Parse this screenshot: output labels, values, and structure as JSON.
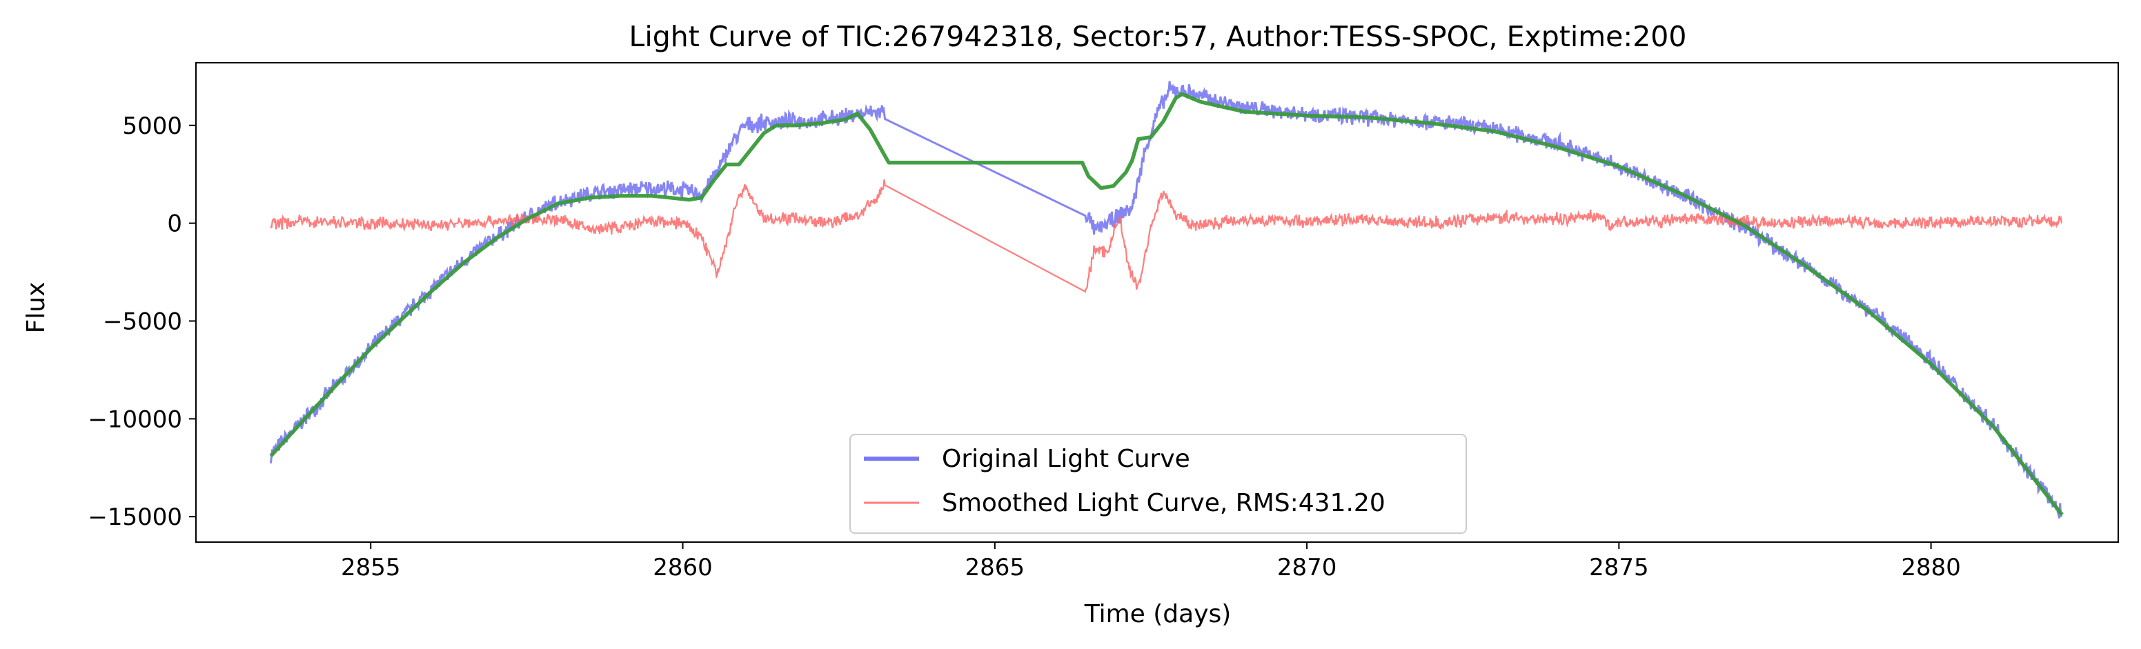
{
  "chart_data": {
    "type": "line",
    "title": "Light Curve of TIC:267942318, Sector:57, Author:TESS-SPOC, Exptime:200",
    "xlabel": "Time (days)",
    "ylabel": "Flux",
    "xlim": [
      2852.2,
      2883.0
    ],
    "ylim": [
      -16300,
      8200
    ],
    "xticks": [
      2855,
      2860,
      2865,
      2870,
      2875,
      2880
    ],
    "yticks": [
      5000,
      0,
      -5000,
      -10000,
      -15000
    ],
    "ytick_labels": [
      "5000",
      "0",
      "−5000",
      "−10000",
      "−15000"
    ],
    "grid": false,
    "legend_position": "lower center",
    "legend": [
      {
        "label": "Original Light Curve",
        "color": "#7777f6"
      },
      {
        "label": "Smoothed Light Curve, RMS:431.20",
        "color": "#ff7b7b"
      }
    ],
    "series": [
      {
        "name": "Original Light Curve",
        "color": "#6666f0",
        "x": [
          2853.4,
          2854.0,
          2854.5,
          2855.0,
          2855.5,
          2856.0,
          2856.5,
          2857.0,
          2857.5,
          2858.0,
          2858.5,
          2859.0,
          2859.5,
          2860.0,
          2860.3,
          2860.5,
          2860.65,
          2860.8,
          2861.0,
          2861.5,
          2862.0,
          2862.5,
          2862.9,
          2863.2,
          2866.5,
          2866.6,
          2866.9,
          2867.2,
          2867.4,
          2867.6,
          2867.8,
          2868.0,
          2868.5,
          2869.0,
          2870.0,
          2871.0,
          2872.0,
          2873.0,
          2874.0,
          2875.0,
          2876.0,
          2877.0,
          2878.0,
          2879.0,
          2880.0,
          2881.0,
          2882.1
        ],
        "y": [
          -11800,
          -9800,
          -8100,
          -6400,
          -4800,
          -3300,
          -1900,
          -700,
          300,
          1100,
          1500,
          1700,
          1800,
          1700,
          1500,
          2400,
          3200,
          4200,
          5000,
          5200,
          5200,
          5400,
          5600,
          5700,
          300,
          -400,
          200,
          800,
          3600,
          5600,
          6800,
          6800,
          6300,
          5900,
          5600,
          5400,
          5200,
          4800,
          4100,
          2900,
          1500,
          -200,
          -2200,
          -4400,
          -7000,
          -10300,
          -14900
        ],
        "band_width": 1100
      },
      {
        "name": "",
        "color": "#3a9a3a",
        "x": [
          2853.4,
          2854.0,
          2854.5,
          2855.0,
          2855.5,
          2856.0,
          2856.5,
          2857.0,
          2857.5,
          2858.0,
          2858.5,
          2859.0,
          2859.5,
          2859.8,
          2860.1,
          2860.3,
          2860.5,
          2860.7,
          2860.9,
          2861.1,
          2861.3,
          2861.5,
          2861.8,
          2862.2,
          2862.6,
          2862.8,
          2863.0,
          2863.3,
          2866.4,
          2866.5,
          2866.7,
          2866.9,
          2867.1,
          2867.2,
          2867.3,
          2867.5,
          2867.7,
          2867.9,
          2868.0,
          2868.3,
          2869.0,
          2870.0,
          2871.0,
          2872.0,
          2873.0,
          2874.0,
          2875.0,
          2876.0,
          2877.0,
          2878.0,
          2879.0,
          2880.0,
          2881.0,
          2882.1
        ],
        "y": [
          -11900,
          -9800,
          -8100,
          -6400,
          -4900,
          -3400,
          -2000,
          -800,
          200,
          1000,
          1300,
          1400,
          1400,
          1300,
          1200,
          1300,
          2200,
          3000,
          3000,
          3800,
          4600,
          5000,
          5000,
          5100,
          5300,
          5600,
          4800,
          3100,
          3100,
          2400,
          1800,
          1900,
          2600,
          3200,
          4300,
          4400,
          5200,
          6400,
          6600,
          6200,
          5700,
          5500,
          5400,
          5100,
          4700,
          3900,
          2900,
          1500,
          -100,
          -2200,
          -4500,
          -7200,
          -10400,
          -14900
        ]
      },
      {
        "name": "Smoothed Light Curve, RMS:431.20",
        "color": "#ff6666",
        "x": [
          2853.4,
          2854.0,
          2855.0,
          2856.0,
          2857.0,
          2857.5,
          2858.0,
          2858.5,
          2859.0,
          2859.5,
          2860.0,
          2860.3,
          2860.55,
          2860.7,
          2860.85,
          2861.0,
          2861.3,
          2861.8,
          2862.3,
          2862.8,
          2863.1,
          2863.3,
          2866.35,
          2866.45,
          2866.6,
          2866.8,
          2867.0,
          2867.15,
          2867.3,
          2867.5,
          2867.7,
          2867.9,
          2868.2,
          2869.0,
          2870.0,
          2871.0,
          2872.0,
          2873.0,
          2874.0,
          2874.7,
          2874.8,
          2875.5,
          2876.5,
          2877.5,
          2878.5,
          2879.5,
          2880.5,
          2881.5,
          2882.1
        ],
        "y": [
          0,
          100,
          0,
          -100,
          100,
          200,
          200,
          -300,
          -200,
          100,
          0,
          -700,
          -2600,
          -1000,
          1000,
          1800,
          200,
          300,
          0,
          400,
          1200,
          2400,
          -2700,
          -3500,
          -1300,
          -1500,
          400,
          -2400,
          -3300,
          -200,
          1700,
          400,
          -100,
          200,
          100,
          200,
          0,
          300,
          200,
          400,
          0,
          100,
          200,
          0,
          100,
          0,
          100,
          100,
          100
        ],
        "noise": 380
      }
    ]
  }
}
